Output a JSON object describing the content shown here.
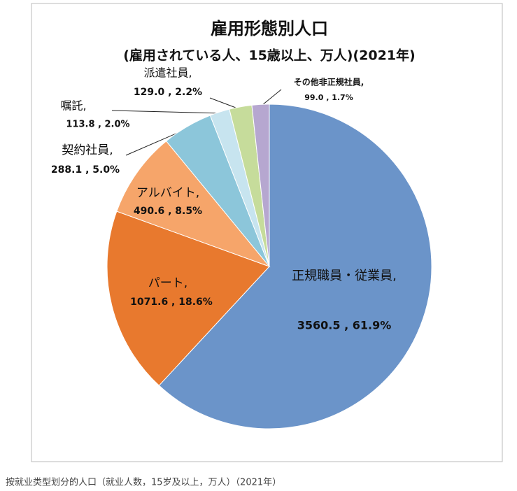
{
  "chart_data": {
    "type": "pie",
    "title": "雇用形態別人口",
    "subtitle": "(雇用されている人、15歳以上、万人)(2021年)",
    "categories": [
      "正規職員・従業員,",
      "パート,",
      "アルバイト,",
      "契約社員,",
      "嘱託,",
      "派遣社員,",
      "その他非正規社員,"
    ],
    "values": [
      3560.5,
      1071.6,
      490.6,
      288.1,
      113.8,
      129.0,
      99.0
    ],
    "value_labels": [
      "3560.5 , 61.9%",
      "1071.6 , 18.6%",
      "490.6 , 8.5%",
      "288.1 , 5.0%",
      "113.8 , 2.0%",
      "129.0 , 2.2%",
      "99.0 , 1.7%"
    ],
    "colors": [
      "#6b94c9",
      "#e8792e",
      "#f6a56a",
      "#8cc6da",
      "#c7e4ef",
      "#c6dc9b",
      "#b6a7d0"
    ],
    "caption": "按就业类型划分的人口（就业人数，15岁及以上，万人）（2021年）"
  }
}
